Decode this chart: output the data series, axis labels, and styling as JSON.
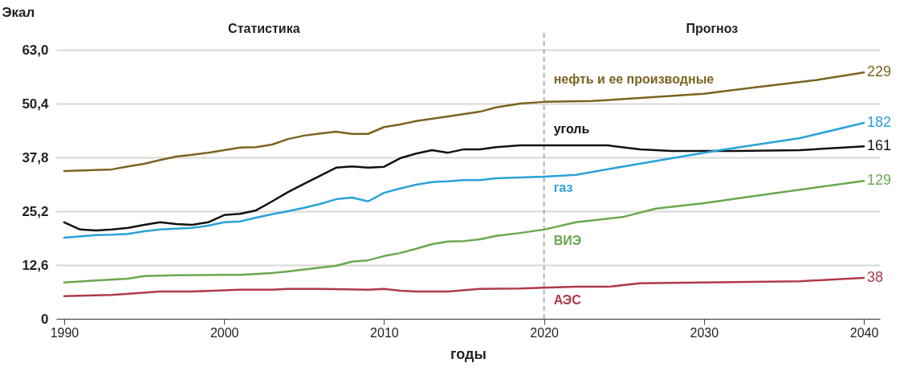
{
  "chart_data": {
    "type": "line",
    "ylabel": "Экал",
    "xlabel": "годы",
    "xlim": [
      1989.5,
      2041
    ],
    "xticks": [
      1990,
      2000,
      2010,
      2020,
      2030,
      2040
    ],
    "ylim": [
      0,
      63
    ],
    "yticks": [
      0,
      {
        "value": 12.6,
        "label": "12,6"
      },
      {
        "value": 25.2,
        "label": "25,2"
      },
      {
        "value": 37.8,
        "label": "37,8"
      },
      {
        "value": 50.4,
        "label": "50,4"
      },
      {
        "value": 63,
        "label": "63,0"
      }
    ],
    "grid": "y",
    "legend": false,
    "marker": "none",
    "line_style": "solid",
    "series": [
      {
        "name": "нефть и ее производные",
        "color": "#7a6420",
        "x": [
          1990,
          1993,
          1994,
          1995,
          1996,
          1997,
          1998,
          1999,
          2000,
          2001,
          2002,
          2003,
          2004,
          2005,
          2006,
          2007,
          2008,
          2009,
          2010,
          2011,
          2012,
          2014,
          2016,
          2017,
          2018.5,
          2020,
          2023,
          2026,
          2030,
          2033,
          2037,
          2040
        ],
        "values": [
          34.6,
          35.0,
          35.7,
          36.3,
          37.2,
          38.0,
          38.4,
          38.9,
          39.5,
          40.1,
          40.2,
          40.8,
          42.1,
          42.9,
          43.4,
          43.8,
          43.3,
          43.3,
          44.9,
          45.5,
          46.3,
          47.4,
          48.5,
          49.5,
          50.4,
          50.8,
          51.0,
          51.7,
          52.7,
          54.1,
          55.9,
          57.7
        ]
      },
      {
        "name": "уголь",
        "color": "#111111",
        "x": [
          1990,
          1991,
          1992,
          1993,
          1994,
          1995,
          1996,
          1997,
          1998,
          1999,
          2000,
          2001,
          2002,
          2003,
          2004,
          2005,
          2006,
          2007,
          2008,
          2009,
          2010,
          2011,
          2012,
          2013,
          2014,
          2015,
          2016,
          2017,
          2018.5,
          2020,
          2022,
          2024,
          2026,
          2028,
          2032,
          2036,
          2040
        ],
        "values": [
          22.6,
          20.9,
          20.7,
          20.9,
          21.3,
          22.0,
          22.6,
          22.2,
          22.0,
          22.6,
          24.3,
          24.6,
          25.4,
          27.5,
          29.7,
          31.6,
          33.5,
          35.4,
          35.7,
          35.4,
          35.6,
          37.6,
          38.7,
          39.5,
          38.9,
          39.7,
          39.7,
          40.2,
          40.6,
          40.6,
          40.6,
          40.6,
          39.7,
          39.3,
          39.3,
          39.5,
          40.4
        ]
      },
      {
        "name": "газ",
        "color": "#2aa2d8",
        "x": [
          1990,
          1992,
          1993,
          1994,
          1995,
          1996,
          1997,
          1998,
          1999,
          2000,
          2001,
          2002,
          2003,
          2004,
          2005,
          2006,
          2007,
          2008,
          2009,
          2010,
          2011,
          2012,
          2013,
          2014,
          2015,
          2016,
          2017,
          2018.5,
          2020,
          2022,
          2025,
          2028,
          2031,
          2036,
          2040
        ],
        "values": [
          19.0,
          19.6,
          19.7,
          19.9,
          20.5,
          20.9,
          21.1,
          21.3,
          21.8,
          22.6,
          22.8,
          23.7,
          24.5,
          25.2,
          26.0,
          26.9,
          28.0,
          28.4,
          27.5,
          29.5,
          30.5,
          31.4,
          32.0,
          32.2,
          32.5,
          32.5,
          32.9,
          33.1,
          33.3,
          33.7,
          35.7,
          37.6,
          39.5,
          42.3,
          45.9
        ]
      },
      {
        "name": "ВИЭ",
        "color": "#6aa84f",
        "x": [
          1990,
          1992,
          1994,
          1995,
          1997,
          2000,
          2001,
          2003,
          2004,
          2006,
          2007,
          2008,
          2009,
          2010,
          2011,
          2012,
          2013,
          2014,
          2015,
          2016,
          2017,
          2018.5,
          2020,
          2022,
          2025,
          2027,
          2030,
          2034,
          2040
        ],
        "values": [
          8.5,
          9.0,
          9.4,
          10.0,
          10.2,
          10.3,
          10.3,
          10.7,
          11.1,
          12.0,
          12.4,
          13.4,
          13.7,
          14.7,
          15.4,
          16.4,
          17.5,
          18.1,
          18.2,
          18.6,
          19.4,
          20.1,
          20.9,
          22.6,
          23.9,
          25.8,
          27.1,
          29.2,
          32.3
        ]
      },
      {
        "name": "АЭС",
        "color": "#b03a4a",
        "x": [
          1990,
          1993,
          1996,
          1998,
          2001,
          2003,
          2004,
          2006,
          2009,
          2010,
          2011,
          2012,
          2014,
          2016,
          2018.5,
          2020,
          2022,
          2024,
          2026,
          2030,
          2036,
          2040
        ],
        "values": [
          5.3,
          5.6,
          6.4,
          6.4,
          6.8,
          6.8,
          7.0,
          7.0,
          6.8,
          7.0,
          6.6,
          6.4,
          6.4,
          7.0,
          7.1,
          7.3,
          7.5,
          7.5,
          8.3,
          8.5,
          8.8,
          9.6
        ]
      }
    ],
    "ref_lines": [
      {
        "axis": "x",
        "value": 2020,
        "color": "#999999",
        "line_style": "dashed"
      }
    ],
    "annotations": [
      "Статистика",
      "Прогноз",
      "229",
      "161",
      "182",
      "129",
      "38"
    ]
  }
}
